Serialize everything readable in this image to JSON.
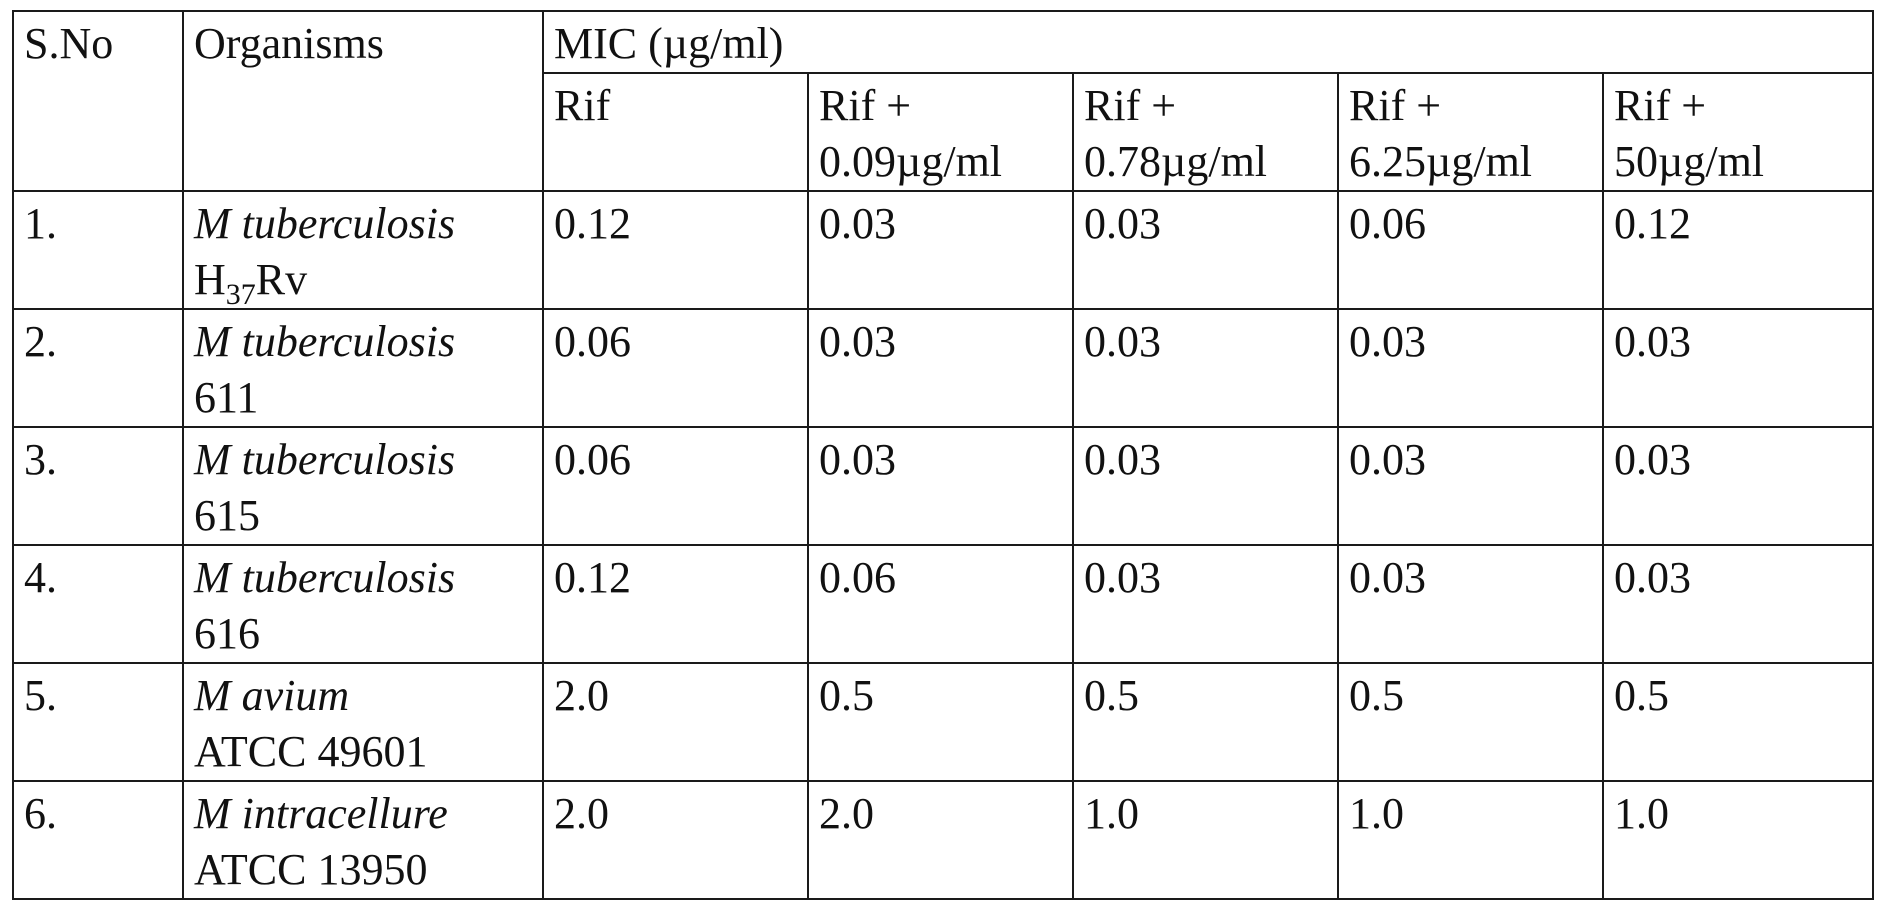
{
  "table": {
    "headers": {
      "sno": "S.No",
      "organisms": "Organisms",
      "mic": "MIC (µg/ml)",
      "sub": [
        {
          "line1": "Rif",
          "line2": ""
        },
        {
          "line1": "Rif +",
          "line2": "0.09µg/ml"
        },
        {
          "line1": "Rif +",
          "line2": "0.78µg/ml"
        },
        {
          "line1": "Rif +",
          "line2": "6.25µg/ml"
        },
        {
          "line1": "Rif +",
          "line2": "50µg/ml"
        }
      ]
    },
    "rows": [
      {
        "sno": "1.",
        "organism": "M tuberculosis",
        "strain_main": "H",
        "strain_sub": "37",
        "strain_tail": "Rv",
        "values": [
          "0.12",
          "0.03",
          "0.03",
          "0.06",
          "0.12"
        ]
      },
      {
        "sno": "2.",
        "organism": "M tuberculosis",
        "strain_main": "611",
        "strain_sub": "",
        "strain_tail": "",
        "values": [
          "0.06",
          "0.03",
          "0.03",
          "0.03",
          "0.03"
        ]
      },
      {
        "sno": "3.",
        "organism": "M tuberculosis",
        "strain_main": "615",
        "strain_sub": "",
        "strain_tail": "",
        "values": [
          "0.06",
          "0.03",
          "0.03",
          "0.03",
          "0.03"
        ]
      },
      {
        "sno": "4.",
        "organism": "M tuberculosis",
        "strain_main": "616",
        "strain_sub": "",
        "strain_tail": "",
        "values": [
          "0.12",
          "0.06",
          "0.03",
          "0.03",
          "0.03"
        ]
      },
      {
        "sno": "5.",
        "organism": "M avium",
        "strain_main": "ATCC 49601",
        "strain_sub": "",
        "strain_tail": "",
        "values": [
          "2.0",
          "0.5",
          "0.5",
          "0.5",
          "0.5"
        ]
      },
      {
        "sno": "6.",
        "organism": "M intracellure",
        "strain_main": "ATCC 13950",
        "strain_sub": "",
        "strain_tail": "",
        "values": [
          "2.0",
          "2.0",
          "1.0",
          "1.0",
          "1.0"
        ]
      }
    ]
  }
}
